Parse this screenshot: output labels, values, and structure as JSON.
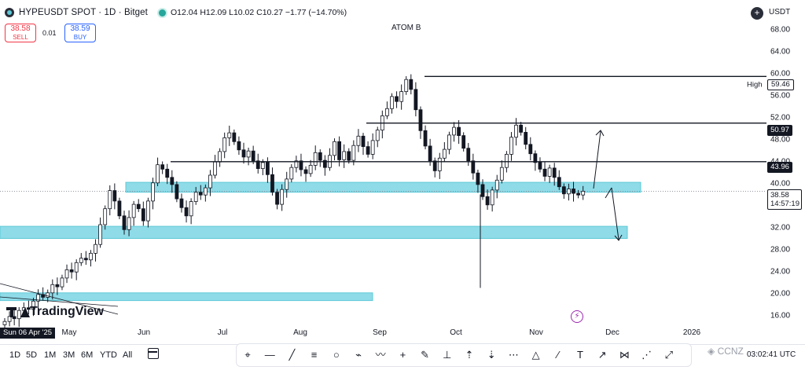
{
  "header": {
    "symbol": "HYPEUSDT SPOT · 1D · Bitget",
    "ohlc": "O12.04 H12.09 L10.02 C10.27 −1.77 (−14.70%)"
  },
  "trade": {
    "sell_price": "38.58",
    "sell_label": "SELL",
    "spread": "0.01",
    "buy_price": "38.59",
    "buy_label": "BUY"
  },
  "chart_title": "ATOM B",
  "currency": "USDT",
  "chart_data": {
    "type": "candlestick",
    "x_unit": "date",
    "ylim": [
      14.5,
      70.5
    ],
    "price_ticks": [
      "68.00",
      "64.00",
      "60.00",
      "56.00",
      "52.00",
      "48.00",
      "44.00",
      "40.00",
      "36.00",
      "32.00",
      "28.00",
      "24.00",
      "20.00",
      "16.00"
    ],
    "time_ticks": [
      "May",
      "Jun",
      "Jul",
      "Aug",
      "Sep",
      "Oct",
      "Nov",
      "Dec",
      "2026"
    ],
    "high_label": "High",
    "high_value": "59.46",
    "levels": [
      "50.97",
      "43.96"
    ],
    "last_price": "38.58",
    "countdown": "14:57:19",
    "cursor_date": "Sun 06 Apr '25",
    "closes": [
      14.9,
      15.8,
      15.4,
      16.9,
      17.4,
      17.1,
      18.6,
      19.8,
      19.3,
      20.1,
      21.6,
      21.2,
      22.8,
      24.3,
      23.9,
      25.6,
      26.4,
      26.1,
      27.3,
      28.9,
      32.5,
      35.4,
      38.7,
      36.8,
      34.1,
      31.6,
      33.8,
      36.2,
      35.4,
      33.2,
      36.8,
      40.1,
      43.4,
      42.6,
      41.1,
      39.8,
      37.2,
      35.6,
      34.1,
      36.7,
      38.4,
      37.9,
      39.2,
      41.5,
      43.9,
      45.8,
      48.3,
      49.2,
      47.6,
      46.1,
      44.8,
      45.9,
      44.1,
      42.7,
      43.8,
      41.6,
      38.4,
      36.2,
      38.9,
      40.8,
      42.9,
      44.1,
      42.5,
      41.8,
      43.3,
      45.6,
      44.2,
      42.9,
      45.1,
      47.6,
      44.3,
      45.8,
      44.2,
      46.9,
      48.6,
      46.7,
      45.3,
      47.8,
      49.7,
      52.3,
      53.6,
      55.8,
      54.9,
      56.7,
      58.9,
      57.1,
      53.4,
      49.6,
      46.8,
      44.1,
      42.3,
      44.6,
      46.2,
      48.8,
      50.2,
      48.7,
      46.4,
      44.1,
      41.9,
      39.8,
      37.6,
      36.1,
      38.8,
      40.6,
      42.9,
      45.3,
      48.4,
      50.6,
      49.3,
      47.1,
      45.4,
      43.8,
      42.6,
      41.3,
      42.8,
      41.1,
      39.4,
      38.1,
      39.0,
      38.2,
      37.9,
      38.58
    ]
  },
  "tv_logo": "TradingView",
  "time_left": "03:02:41 UTC",
  "timeframes": [
    "1D",
    "5D",
    "1M",
    "3M",
    "6M",
    "YTD",
    "All"
  ],
  "tools": [
    "cursor-icon",
    "horizontal-line-icon",
    "trend-line-icon",
    "parallel-channel-icon",
    "circle-icon",
    "path-icon",
    "fib-icon",
    "crosshair-icon",
    "brush-icon",
    "candle-icon",
    "long-position-icon",
    "short-position-icon",
    "forecast-icon",
    "triangle-icon",
    "pen-icon",
    "text-icon",
    "arrow-icon",
    "pattern-icon",
    "measure-icon",
    "zoom-icon"
  ],
  "watermark": "◈ CCNZ"
}
